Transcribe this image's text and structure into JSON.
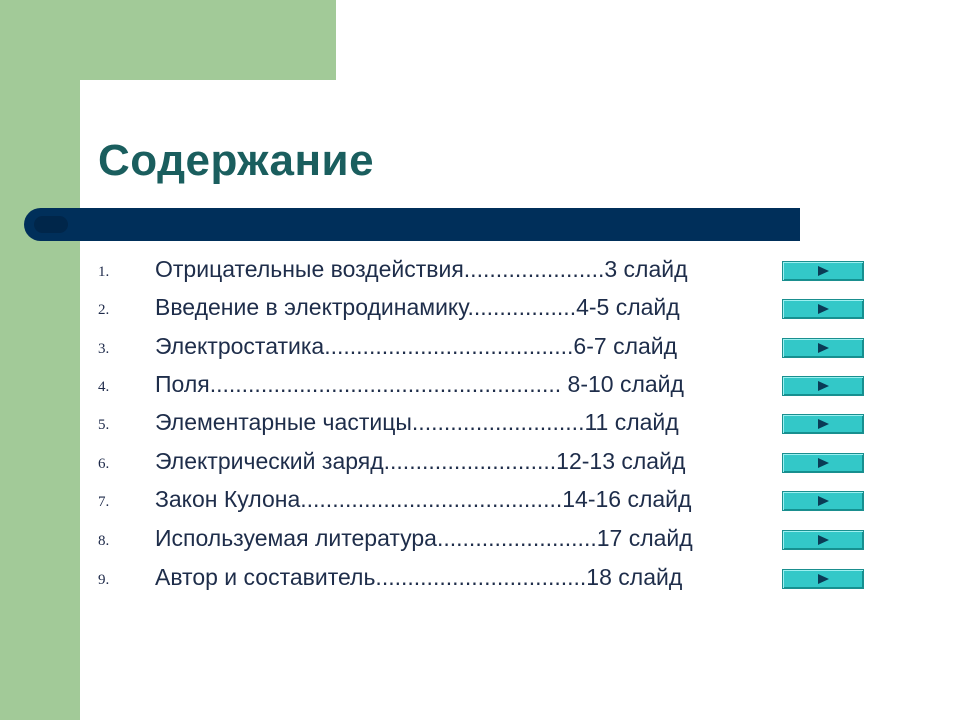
{
  "slide": {
    "title": "Содержание",
    "colors": {
      "accent_green": "#a2ca98",
      "title_teal": "#1a5e5e",
      "bar_navy": "#002f5a",
      "button_cyan": "#33c8c8",
      "text": "#1e2d4a"
    }
  },
  "toc": {
    "items": [
      {
        "num": "1.",
        "text": "Отрицательные воздействия......................3 слайд",
        "button_icon": "play-arrow-icon"
      },
      {
        "num": "2.",
        "text": "Введение в электродинамику.................4-5 слайд",
        "button_icon": "play-arrow-icon"
      },
      {
        "num": "3.",
        "text": "Электростатика.......................................6-7 слайд",
        "button_icon": "play-arrow-icon"
      },
      {
        "num": "4.",
        "text": "Поля....................................................... 8-10 слайд",
        "button_icon": "play-arrow-icon"
      },
      {
        "num": "5.",
        "text": "Элементарные частицы...........................11 слайд",
        "button_icon": "play-arrow-icon"
      },
      {
        "num": "6.",
        "text": "Электрический заряд...........................12-13 слайд",
        "button_icon": "play-arrow-icon"
      },
      {
        "num": "7.",
        "text": "Закон Кулона.........................................14-16 слайд",
        "button_icon": "play-arrow-icon"
      },
      {
        "num": "8.",
        "text": "Используемая литература.........................17 слайд",
        "button_icon": "play-arrow-icon"
      },
      {
        "num": "9.",
        "text": "Автор и составитель.................................18 слайд",
        "button_icon": "play-arrow-icon"
      }
    ]
  }
}
